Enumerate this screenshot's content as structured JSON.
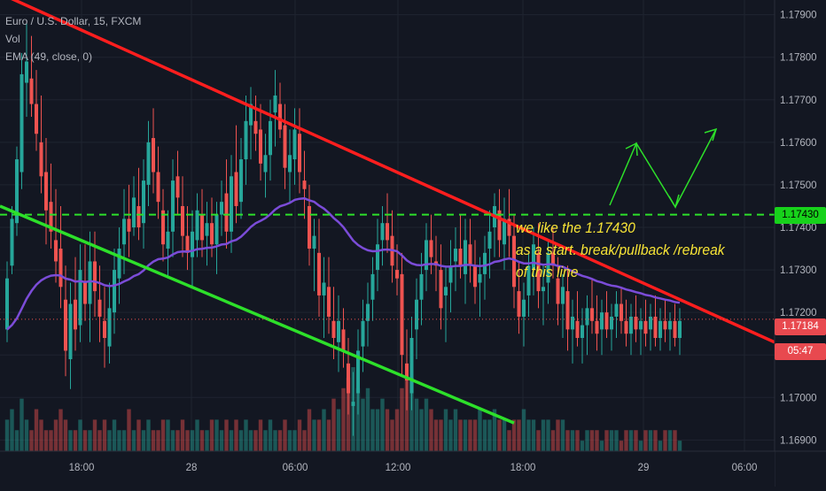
{
  "legend": {
    "symbol": "Euro / U.S. Dollar, 15, FXCM",
    "vol": "Vol",
    "ema": "EMA (49, close, 0)"
  },
  "annotation": {
    "line1": "we like the 1.17430",
    "line2": "as a start. break/pullback /rebreak",
    "line3": "of this line"
  },
  "tags": {
    "level": "1.17430",
    "last_price": "1.17184",
    "countdown": "05:47"
  },
  "colors": {
    "background": "#131722",
    "up": "#26a69a",
    "down": "#ef5350",
    "ema": "#7b4cd8",
    "channel_top": "#ff1e1e",
    "channel_bottom": "#2de02a",
    "level_line": "#2de02a",
    "annotation": "#f7e436"
  },
  "chart_data": {
    "type": "candlestick",
    "symbol": "EURUSD",
    "timeframe": "15",
    "y_ticks": [
      "1.17900",
      "1.17800",
      "1.17700",
      "1.17600",
      "1.17500",
      "1.17400",
      "1.17300",
      "1.17200",
      "1.17100",
      "1.17000",
      "1.16900"
    ],
    "x_ticks": [
      "18:00",
      "28",
      "06:00",
      "12:00",
      "18:00",
      "29",
      "06:00"
    ],
    "ylim": [
      1.1688,
      1.1792
    ],
    "horizontal_level": 1.1743,
    "last_price": 1.17184,
    "candles": [
      [
        1.1716,
        1.1732,
        1.1713,
        1.1728
      ],
      [
        1.1731,
        1.1745,
        1.1729,
        1.1742
      ],
      [
        1.1741,
        1.1759,
        1.1738,
        1.1756
      ],
      [
        1.1753,
        1.1781,
        1.1749,
        1.1776
      ],
      [
        1.1774,
        1.1788,
        1.1766,
        1.1779
      ],
      [
        1.1775,
        1.1785,
        1.1766,
        1.1769
      ],
      [
        1.1769,
        1.1777,
        1.1758,
        1.1762
      ],
      [
        1.176,
        1.1771,
        1.1748,
        1.1752
      ],
      [
        1.1753,
        1.1761,
        1.1736,
        1.1744
      ],
      [
        1.1746,
        1.1755,
        1.1735,
        1.1739
      ],
      [
        1.1737,
        1.1749,
        1.1727,
        1.1732
      ],
      [
        1.1735,
        1.1745,
        1.1721,
        1.1726
      ],
      [
        1.1723,
        1.1731,
        1.1705,
        1.1711
      ],
      [
        1.1709,
        1.1727,
        1.1702,
        1.1722
      ],
      [
        1.1723,
        1.1733,
        1.1711,
        1.1716
      ],
      [
        1.1717,
        1.1736,
        1.1713,
        1.173
      ],
      [
        1.1727,
        1.1736,
        1.1718,
        1.1722
      ],
      [
        1.1722,
        1.1739,
        1.1713,
        1.1732
      ],
      [
        1.1732,
        1.1739,
        1.1719,
        1.1725
      ],
      [
        1.1723,
        1.1731,
        1.1713,
        1.1719
      ],
      [
        1.1718,
        1.1726,
        1.1707,
        1.1714
      ],
      [
        1.1712,
        1.1727,
        1.1708,
        1.1721
      ],
      [
        1.172,
        1.1735,
        1.1715,
        1.173
      ],
      [
        1.1728,
        1.174,
        1.1722,
        1.1735
      ],
      [
        1.1736,
        1.1749,
        1.1729,
        1.1742
      ],
      [
        1.1742,
        1.175,
        1.1733,
        1.1739
      ],
      [
        1.174,
        1.1752,
        1.1738,
        1.1747
      ],
      [
        1.1745,
        1.1754,
        1.1737,
        1.174
      ],
      [
        1.1741,
        1.1756,
        1.1735,
        1.1751
      ],
      [
        1.175,
        1.1765,
        1.1745,
        1.176
      ],
      [
        1.1761,
        1.1768,
        1.1748,
        1.1753
      ],
      [
        1.1753,
        1.1759,
        1.1742,
        1.1746
      ],
      [
        1.1744,
        1.1749,
        1.1732,
        1.1736
      ],
      [
        1.1735,
        1.1744,
        1.1728,
        1.1739
      ],
      [
        1.1739,
        1.1756,
        1.1733,
        1.1751
      ],
      [
        1.1752,
        1.1758,
        1.1743,
        1.1747
      ],
      [
        1.1745,
        1.1752,
        1.1733,
        1.1738
      ],
      [
        1.1738,
        1.1745,
        1.173,
        1.1734
      ],
      [
        1.1733,
        1.1744,
        1.1726,
        1.1739
      ],
      [
        1.1737,
        1.1748,
        1.1733,
        1.1744
      ],
      [
        1.1743,
        1.1749,
        1.1733,
        1.1737
      ],
      [
        1.1738,
        1.1746,
        1.1731,
        1.1741
      ],
      [
        1.1741,
        1.1747,
        1.1733,
        1.1736
      ],
      [
        1.1736,
        1.1746,
        1.1729,
        1.1743
      ],
      [
        1.1743,
        1.1751,
        1.1738,
        1.1746
      ],
      [
        1.1748,
        1.1756,
        1.1735,
        1.1739
      ],
      [
        1.1739,
        1.1757,
        1.1734,
        1.1752
      ],
      [
        1.1753,
        1.1764,
        1.1741,
        1.1745
      ],
      [
        1.1746,
        1.1761,
        1.1742,
        1.1756
      ],
      [
        1.1756,
        1.1771,
        1.175,
        1.1765
      ],
      [
        1.1764,
        1.1773,
        1.1756,
        1.1769
      ],
      [
        1.1765,
        1.1771,
        1.1758,
        1.1762
      ],
      [
        1.1763,
        1.1769,
        1.1751,
        1.1755
      ],
      [
        1.1753,
        1.1762,
        1.1747,
        1.1757
      ],
      [
        1.1757,
        1.177,
        1.1751,
        1.1765
      ],
      [
        1.1767,
        1.1777,
        1.1759,
        1.1771
      ],
      [
        1.1769,
        1.1774,
        1.1761,
        1.1763
      ],
      [
        1.1764,
        1.1769,
        1.1749,
        1.1754
      ],
      [
        1.1753,
        1.1763,
        1.1746,
        1.1757
      ],
      [
        1.1756,
        1.1768,
        1.175,
        1.1763
      ],
      [
        1.1762,
        1.1768,
        1.1748,
        1.1753
      ],
      [
        1.1751,
        1.1758,
        1.1742,
        1.1749
      ],
      [
        1.1745,
        1.175,
        1.1731,
        1.1735
      ],
      [
        1.1735,
        1.1742,
        1.1725,
        1.1738
      ],
      [
        1.1734,
        1.1742,
        1.1719,
        1.1724
      ],
      [
        1.1724,
        1.1733,
        1.1714,
        1.1727
      ],
      [
        1.1726,
        1.1733,
        1.1715,
        1.1719
      ],
      [
        1.1718,
        1.1726,
        1.1709,
        1.1714
      ],
      [
        1.1713,
        1.1724,
        1.1706,
        1.1718
      ],
      [
        1.1716,
        1.1721,
        1.1707,
        1.1711
      ],
      [
        1.1708,
        1.1714,
        1.1696,
        1.1701
      ],
      [
        1.1698,
        1.1706,
        1.1691,
        1.1699
      ],
      [
        1.1701,
        1.1716,
        1.1696,
        1.1711
      ],
      [
        1.1712,
        1.1723,
        1.1706,
        1.1718
      ],
      [
        1.1718,
        1.1727,
        1.1712,
        1.1722
      ],
      [
        1.1723,
        1.1733,
        1.1718,
        1.1729
      ],
      [
        1.173,
        1.1742,
        1.1725,
        1.1736
      ],
      [
        1.1737,
        1.1745,
        1.1731,
        1.1741
      ],
      [
        1.1741,
        1.1748,
        1.1734,
        1.1737
      ],
      [
        1.1738,
        1.1744,
        1.1727,
        1.1731
      ],
      [
        1.173,
        1.1736,
        1.1724,
        1.1728
      ],
      [
        1.1729,
        1.1734,
        1.1705,
        1.171
      ],
      [
        1.1708,
        1.1716,
        1.1697,
        1.1704
      ],
      [
        1.1701,
        1.1719,
        1.1697,
        1.1714
      ],
      [
        1.1716,
        1.1728,
        1.1709,
        1.1723
      ],
      [
        1.1723,
        1.1734,
        1.1717,
        1.1729
      ],
      [
        1.173,
        1.1741,
        1.1725,
        1.1737
      ],
      [
        1.1737,
        1.1743,
        1.1729,
        1.1733
      ],
      [
        1.1732,
        1.1738,
        1.1725,
        1.1731
      ],
      [
        1.173,
        1.1736,
        1.1716,
        1.1721
      ],
      [
        1.1724,
        1.1731,
        1.1713,
        1.1726
      ],
      [
        1.1727,
        1.1737,
        1.172,
        1.1731
      ],
      [
        1.1732,
        1.174,
        1.1725,
        1.1735
      ],
      [
        1.1735,
        1.1743,
        1.1728,
        1.1731
      ],
      [
        1.1729,
        1.1742,
        1.1722,
        1.1737
      ],
      [
        1.1736,
        1.1742,
        1.1727,
        1.1731
      ],
      [
        1.1731,
        1.1737,
        1.1722,
        1.1726
      ],
      [
        1.1727,
        1.1733,
        1.1719,
        1.1729
      ],
      [
        1.1729,
        1.1738,
        1.1723,
        1.1734
      ],
      [
        1.1735,
        1.1744,
        1.1728,
        1.1739
      ],
      [
        1.174,
        1.1748,
        1.1733,
        1.1745
      ],
      [
        1.1744,
        1.1749,
        1.1733,
        1.1737
      ],
      [
        1.1736,
        1.1747,
        1.173,
        1.1742
      ],
      [
        1.1742,
        1.1749,
        1.1733,
        1.1738
      ],
      [
        1.1738,
        1.1743,
        1.1721,
        1.1726
      ],
      [
        1.1725,
        1.1732,
        1.1715,
        1.1719
      ],
      [
        1.1719,
        1.1727,
        1.1712,
        1.1723
      ],
      [
        1.1724,
        1.1734,
        1.1719,
        1.1731
      ],
      [
        1.173,
        1.174,
        1.1724,
        1.1736
      ],
      [
        1.1734,
        1.1741,
        1.1721,
        1.1725
      ],
      [
        1.1725,
        1.1731,
        1.1717,
        1.1726
      ],
      [
        1.1727,
        1.1737,
        1.1722,
        1.1734
      ],
      [
        1.1734,
        1.174,
        1.1728,
        1.1731
      ],
      [
        1.1728,
        1.1733,
        1.1717,
        1.1722
      ],
      [
        1.1722,
        1.1729,
        1.1714,
        1.1726
      ],
      [
        1.1725,
        1.1731,
        1.1711,
        1.1716
      ],
      [
        1.1716,
        1.1723,
        1.1708,
        1.1719
      ],
      [
        1.1718,
        1.1725,
        1.1712,
        1.1714
      ],
      [
        1.1714,
        1.1721,
        1.1708,
        1.1717
      ],
      [
        1.1717,
        1.1724,
        1.171,
        1.1721
      ],
      [
        1.1721,
        1.1728,
        1.1715,
        1.1718
      ],
      [
        1.1718,
        1.1724,
        1.1711,
        1.1715
      ],
      [
        1.1716,
        1.1723,
        1.171,
        1.172
      ],
      [
        1.172,
        1.1725,
        1.1714,
        1.1716
      ],
      [
        1.1716,
        1.1722,
        1.1711,
        1.1719
      ],
      [
        1.1719,
        1.1725,
        1.1714,
        1.1722
      ],
      [
        1.1722,
        1.1726,
        1.1715,
        1.1718
      ],
      [
        1.1718,
        1.1723,
        1.1712,
        1.1715
      ],
      [
        1.1715,
        1.1722,
        1.171,
        1.1719
      ],
      [
        1.1719,
        1.1724,
        1.1713,
        1.1716
      ],
      [
        1.1716,
        1.1721,
        1.171,
        1.1718
      ],
      [
        1.1718,
        1.1723,
        1.1712,
        1.1715
      ],
      [
        1.1716,
        1.1722,
        1.1711,
        1.1719
      ],
      [
        1.1719,
        1.1724,
        1.1712,
        1.1714
      ],
      [
        1.1714,
        1.1721,
        1.1711,
        1.1718
      ],
      [
        1.1718,
        1.1723,
        1.1713,
        1.1716
      ],
      [
        1.1716,
        1.172,
        1.1711,
        1.1718
      ],
      [
        1.1718,
        1.1722,
        1.1712,
        1.1714
      ],
      [
        1.1714,
        1.1721,
        1.171,
        1.1718
      ]
    ],
    "volume": [
      3,
      4,
      2,
      5,
      3,
      2,
      4,
      3,
      2,
      2,
      3,
      4,
      3,
      2,
      2,
      3,
      2,
      2,
      3,
      2,
      3,
      2,
      3,
      2,
      2,
      4,
      2,
      3,
      2,
      3,
      2,
      2,
      3,
      3,
      2,
      2,
      3,
      2,
      2,
      3,
      2,
      2,
      3,
      3,
      2,
      3,
      2,
      3,
      2,
      3,
      2,
      2,
      3,
      2,
      3,
      2,
      2,
      3,
      2,
      2,
      3,
      2,
      4,
      3,
      3,
      4,
      3,
      5,
      4,
      6,
      7,
      8,
      6,
      5,
      6,
      4,
      4,
      5,
      4,
      3,
      4,
      6,
      7,
      7,
      5,
      4,
      5,
      4,
      3,
      3,
      4,
      3,
      4,
      3,
      3,
      3,
      3,
      4,
      3,
      3,
      4,
      3,
      3,
      2,
      3,
      3,
      4,
      3,
      3,
      2,
      3,
      3,
      2,
      3,
      3,
      2,
      2,
      2,
      1,
      2,
      2,
      2,
      1,
      2,
      2,
      2,
      1,
      2,
      2,
      2,
      1,
      2,
      2,
      2,
      1,
      2,
      2,
      2,
      1
    ],
    "ema_period": 49,
    "trendline_top": {
      "start": [
        0,
        1.1795
      ],
      "end": [
        140,
        1.1713
      ]
    },
    "trendline_bottom": {
      "start": [
        0,
        1.1745
      ],
      "end": [
        87,
        1.1694
      ]
    },
    "projection_path": [
      [
        1.1747,
        1.1759,
        1.1744,
        1.1762
      ]
    ]
  }
}
